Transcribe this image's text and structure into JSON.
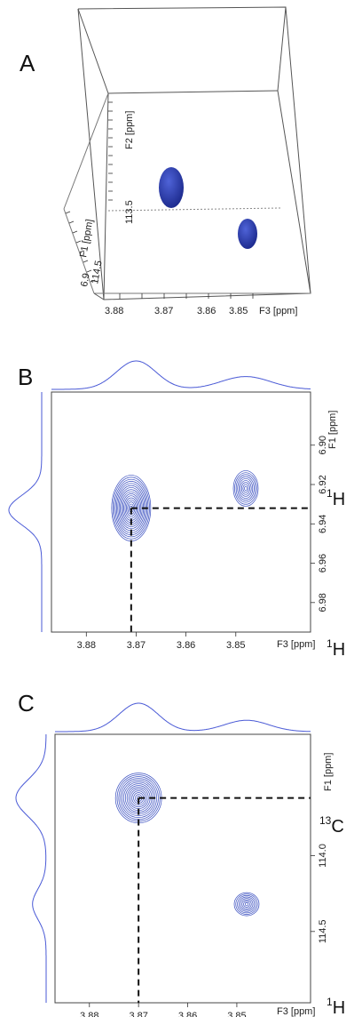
{
  "colors": {
    "contour": "#3a4fc0",
    "trace": "#4a5ad6",
    "blob": "#2a3aa8",
    "dash": "#111111",
    "frame": "#444444"
  },
  "chart_data": [
    {
      "type": "scatter",
      "panel_label": "A",
      "title": "",
      "x_axis": {
        "label": "F3 [ppm]",
        "ticks": [
          "3.88",
          "3.87",
          "3.86",
          "3.85"
        ]
      },
      "y_axis": {
        "label": "F2 [ppm]",
        "ticks": [
          "113.5"
        ]
      },
      "z_axis": {
        "label": "F1 [ppm]",
        "ticks": [
          "114.5",
          "6.9"
        ]
      },
      "peaks": [
        {
          "F3": 3.869,
          "F2": 113.6,
          "F1": 6.93
        },
        {
          "F3": 3.848,
          "F2": 114.3,
          "F1": 6.92
        }
      ]
    },
    {
      "type": "heatmap",
      "panel_label": "B",
      "title": "",
      "x_axis": {
        "label": "F3 [ppm]",
        "ticks": [
          3.88,
          3.87,
          3.86,
          3.85
        ],
        "range": [
          3.887,
          3.835
        ]
      },
      "y_axis": {
        "label": "F1 [ppm]",
        "ticks": [
          6.9,
          6.92,
          6.94,
          6.96,
          6.98
        ],
        "range": [
          6.873,
          6.995
        ]
      },
      "x_nucleus": {
        "mass": "1",
        "symbol": "H"
      },
      "y_nucleus": {
        "mass": "1",
        "symbol": "H"
      },
      "peaks": [
        {
          "x": 3.871,
          "y": 6.932,
          "intensity": 1.0,
          "crosshair": true
        },
        {
          "x": 3.848,
          "y": 6.922,
          "intensity": 0.6,
          "crosshair": false
        }
      ],
      "projection_top": [
        {
          "center": 3.87,
          "height": 1.0,
          "width": 0.004
        },
        {
          "center": 3.848,
          "height": 0.45,
          "width": 0.005
        }
      ],
      "projection_left": [
        {
          "center": 6.933,
          "height": 1.0,
          "width": 0.0075
        }
      ]
    },
    {
      "type": "heatmap",
      "panel_label": "C",
      "title": "",
      "x_axis": {
        "label": "F3 [ppm]",
        "ticks": [
          3.88,
          3.87,
          3.86,
          3.85
        ],
        "range": [
          3.887,
          3.835
        ]
      },
      "y_axis": {
        "label": "F1 [ppm]",
        "ticks": [
          114.0,
          114.5
        ],
        "range": [
          113.2,
          114.97
        ]
      },
      "x_nucleus": {
        "mass": "1",
        "symbol": "H"
      },
      "y_nucleus": {
        "mass": "13",
        "symbol": "C"
      },
      "peaks": [
        {
          "x": 3.87,
          "y": 113.62,
          "intensity": 1.0,
          "crosshair": true
        },
        {
          "x": 3.848,
          "y": 114.32,
          "intensity": 0.55,
          "crosshair": false
        }
      ],
      "projection_top": [
        {
          "center": 3.87,
          "height": 1.0,
          "width": 0.004
        },
        {
          "center": 3.848,
          "height": 0.4,
          "width": 0.0045
        }
      ],
      "projection_left": [
        {
          "center": 113.62,
          "height": 1.0,
          "width": 0.12
        },
        {
          "center": 114.32,
          "height": 0.45,
          "width": 0.1
        }
      ]
    }
  ]
}
